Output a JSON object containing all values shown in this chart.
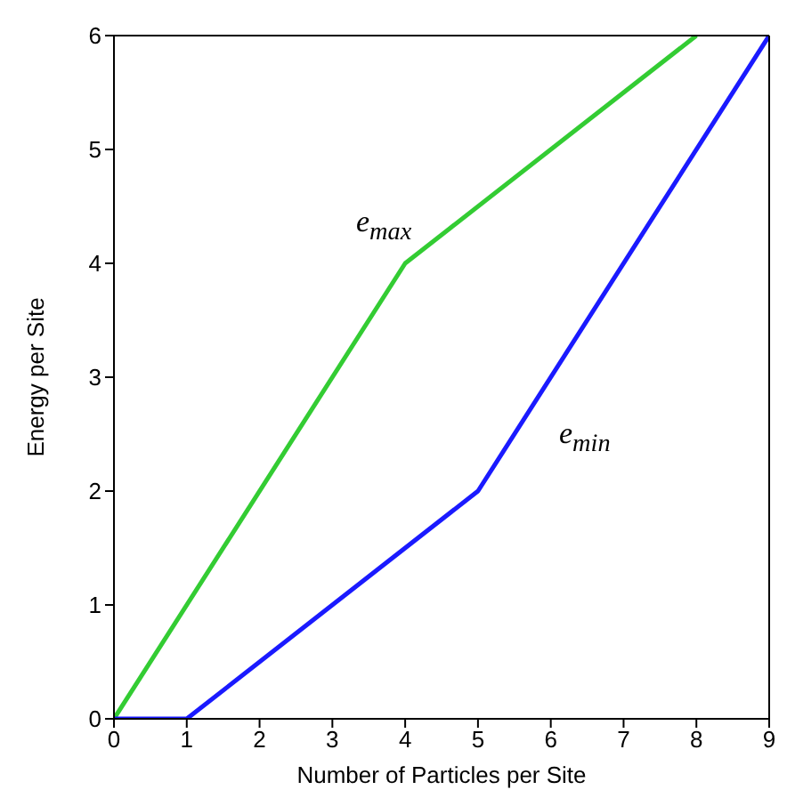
{
  "chart_data": {
    "type": "line",
    "xlabel": "Number of Particles per Site",
    "ylabel": "Energy per Site",
    "series": [
      {
        "color": "#33cc33",
        "x": [
          0,
          4,
          8
        ],
        "values": [
          0,
          4,
          6
        ]
      },
      {
        "color": "#1a1aff",
        "x": [
          0,
          1,
          5,
          9
        ],
        "values": [
          0,
          0,
          2,
          6
        ]
      }
    ],
    "xlim": [
      0,
      9
    ],
    "xticks": [
      0,
      1,
      2,
      3,
      4,
      5,
      6,
      7,
      8,
      9
    ],
    "ylim": [
      0,
      6
    ],
    "yticks": [
      0,
      1,
      2,
      3,
      4,
      5,
      6
    ],
    "annotations": [
      "e$_{max}$",
      "e$_{min}$"
    ],
    "marker": "none",
    "line_style": "solid"
  }
}
